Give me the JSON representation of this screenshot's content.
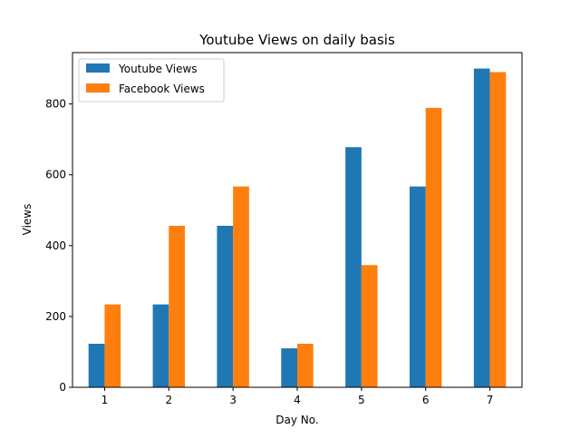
{
  "chart_data": {
    "type": "bar",
    "title": "Youtube Views on daily basis",
    "xlabel": "Day No.",
    "ylabel": "Views",
    "categories": [
      "1",
      "2",
      "3",
      "4",
      "5",
      "6",
      "7"
    ],
    "ylim": [
      0,
      945
    ],
    "yticks": [
      0,
      200,
      400,
      600,
      800
    ],
    "grid": false,
    "legend_position": "top-left",
    "series": [
      {
        "name": "Youtube Views",
        "color": "#1f77b4",
        "values": [
          123,
          234,
          456,
          110,
          678,
          567,
          900
        ]
      },
      {
        "name": "Facebook Views",
        "color": "#ff7f0e",
        "values": [
          234,
          456,
          567,
          123,
          345,
          789,
          890
        ]
      }
    ]
  }
}
